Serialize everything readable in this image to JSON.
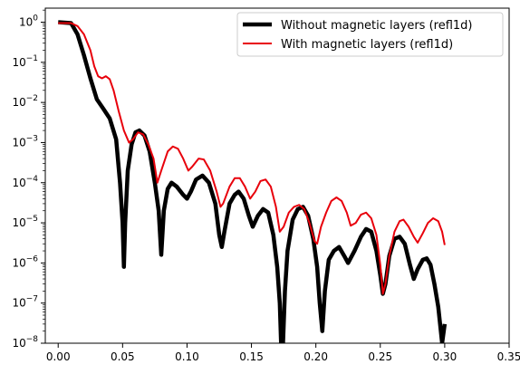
{
  "chart_data": {
    "type": "line",
    "title": "",
    "xlabel": "",
    "ylabel": "",
    "xlim": [
      -0.01,
      0.35
    ],
    "ylim_log10": [
      -8,
      0.35
    ],
    "yscale": "log",
    "grid": false,
    "legend_position": "top-right",
    "x_ticks": [
      {
        "value": 0.0,
        "label": "0.00"
      },
      {
        "value": 0.05,
        "label": "0.05"
      },
      {
        "value": 0.1,
        "label": "0.10"
      },
      {
        "value": 0.15,
        "label": "0.15"
      },
      {
        "value": 0.2,
        "label": "0.20"
      },
      {
        "value": 0.25,
        "label": "0.25"
      },
      {
        "value": 0.3,
        "label": "0.30"
      },
      {
        "value": 0.35,
        "label": "0.35"
      }
    ],
    "y_ticks": [
      {
        "exp": 0,
        "base": "10",
        "sup": "0"
      },
      {
        "exp": -1,
        "base": "10",
        "sup": "−1"
      },
      {
        "exp": -2,
        "base": "10",
        "sup": "−2"
      },
      {
        "exp": -3,
        "base": "10",
        "sup": "−3"
      },
      {
        "exp": -4,
        "base": "10",
        "sup": "−4"
      },
      {
        "exp": -5,
        "base": "10",
        "sup": "−5"
      },
      {
        "exp": -6,
        "base": "10",
        "sup": "−6"
      },
      {
        "exp": -7,
        "base": "10",
        "sup": "−7"
      },
      {
        "exp": -8,
        "base": "10",
        "sup": "−8"
      }
    ],
    "series": [
      {
        "name": "Without magnetic layers (refl1d)",
        "color": "#000000",
        "points": [
          [
            0.0,
            1.0
          ],
          [
            0.01,
            0.95
          ],
          [
            0.015,
            0.5
          ],
          [
            0.02,
            0.15
          ],
          [
            0.025,
            0.04
          ],
          [
            0.03,
            0.012
          ],
          [
            0.035,
            0.007
          ],
          [
            0.04,
            0.004
          ],
          [
            0.045,
            0.0012
          ],
          [
            0.048,
            0.0001
          ],
          [
            0.05,
            1e-05
          ],
          [
            0.051,
            8e-07
          ],
          [
            0.052,
            1e-05
          ],
          [
            0.054,
            0.0002
          ],
          [
            0.057,
            0.0009
          ],
          [
            0.06,
            0.0018
          ],
          [
            0.063,
            0.002
          ],
          [
            0.067,
            0.0015
          ],
          [
            0.071,
            0.0006
          ],
          [
            0.075,
            0.0001
          ],
          [
            0.078,
            2e-05
          ],
          [
            0.08,
            1.6e-06
          ],
          [
            0.082,
            2e-05
          ],
          [
            0.085,
            7e-05
          ],
          [
            0.088,
            0.0001
          ],
          [
            0.092,
            8e-05
          ],
          [
            0.097,
            5e-05
          ],
          [
            0.1,
            4e-05
          ],
          [
            0.103,
            6e-05
          ],
          [
            0.107,
            0.00012
          ],
          [
            0.112,
            0.00015
          ],
          [
            0.117,
            0.0001
          ],
          [
            0.122,
            3e-05
          ],
          [
            0.125,
            5e-06
          ],
          [
            0.127,
            2.5e-06
          ],
          [
            0.129,
            6e-06
          ],
          [
            0.133,
            3e-05
          ],
          [
            0.137,
            5e-05
          ],
          [
            0.14,
            6e-05
          ],
          [
            0.144,
            4e-05
          ],
          [
            0.148,
            1.5e-05
          ],
          [
            0.151,
            8e-06
          ],
          [
            0.155,
            1.5e-05
          ],
          [
            0.159,
            2.2e-05
          ],
          [
            0.163,
            1.8e-05
          ],
          [
            0.167,
            5e-06
          ],
          [
            0.17,
            8e-07
          ],
          [
            0.172,
            1e-07
          ],
          [
            0.173,
            1e-08
          ],
          [
            0.1745,
            1e-08
          ],
          [
            0.176,
            2e-07
          ],
          [
            0.178,
            2e-06
          ],
          [
            0.182,
            1.2e-05
          ],
          [
            0.186,
            2.2e-05
          ],
          [
            0.19,
            2.5e-05
          ],
          [
            0.194,
            1.5e-05
          ],
          [
            0.198,
            4e-06
          ],
          [
            0.201,
            8e-07
          ],
          [
            0.203,
            1e-07
          ],
          [
            0.205,
            2e-08
          ],
          [
            0.207,
            2e-07
          ],
          [
            0.21,
            1.2e-06
          ],
          [
            0.214,
            2e-06
          ],
          [
            0.218,
            2.5e-06
          ],
          [
            0.222,
            1.5e-06
          ],
          [
            0.225,
            1e-06
          ],
          [
            0.23,
            2e-06
          ],
          [
            0.235,
            4.5e-06
          ],
          [
            0.239,
            7e-06
          ],
          [
            0.243,
            6e-06
          ],
          [
            0.247,
            2e-06
          ],
          [
            0.25,
            5e-07
          ],
          [
            0.252,
            1.7e-07
          ],
          [
            0.254,
            3e-07
          ],
          [
            0.257,
            1.5e-06
          ],
          [
            0.261,
            4e-06
          ],
          [
            0.265,
            4.5e-06
          ],
          [
            0.269,
            3e-06
          ],
          [
            0.273,
            9e-07
          ],
          [
            0.276,
            4e-07
          ],
          [
            0.279,
            7e-07
          ],
          [
            0.283,
            1.2e-06
          ],
          [
            0.286,
            1.3e-06
          ],
          [
            0.289,
            9e-07
          ],
          [
            0.292,
            3e-07
          ],
          [
            0.295,
            8e-08
          ],
          [
            0.297,
            2e-08
          ],
          [
            0.298,
            1e-08
          ],
          [
            0.3,
            3e-08
          ]
        ]
      },
      {
        "name": "With magnetic layers (refl1d)",
        "color": "#e8000b",
        "points": [
          [
            0.0,
            0.95
          ],
          [
            0.01,
            0.95
          ],
          [
            0.015,
            0.8
          ],
          [
            0.02,
            0.5
          ],
          [
            0.025,
            0.2
          ],
          [
            0.028,
            0.08
          ],
          [
            0.031,
            0.045
          ],
          [
            0.034,
            0.04
          ],
          [
            0.037,
            0.045
          ],
          [
            0.04,
            0.038
          ],
          [
            0.043,
            0.02
          ],
          [
            0.047,
            0.006
          ],
          [
            0.051,
            0.002
          ],
          [
            0.055,
            0.001
          ],
          [
            0.058,
            0.0012
          ],
          [
            0.062,
            0.0018
          ],
          [
            0.066,
            0.0016
          ],
          [
            0.07,
            0.0009
          ],
          [
            0.074,
            0.0004
          ],
          [
            0.077,
            0.0001
          ],
          [
            0.08,
            0.0002
          ],
          [
            0.085,
            0.0006
          ],
          [
            0.089,
            0.0008
          ],
          [
            0.093,
            0.0007
          ],
          [
            0.097,
            0.0004
          ],
          [
            0.101,
            0.0002
          ],
          [
            0.104,
            0.00025
          ],
          [
            0.109,
            0.0004
          ],
          [
            0.113,
            0.00038
          ],
          [
            0.118,
            0.0002
          ],
          [
            0.123,
            6e-05
          ],
          [
            0.126,
            2.5e-05
          ],
          [
            0.128,
            3e-05
          ],
          [
            0.133,
            8e-05
          ],
          [
            0.137,
            0.00013
          ],
          [
            0.141,
            0.00013
          ],
          [
            0.145,
            8e-05
          ],
          [
            0.149,
            4e-05
          ],
          [
            0.153,
            6e-05
          ],
          [
            0.157,
            0.00011
          ],
          [
            0.161,
            0.00012
          ],
          [
            0.165,
            8e-05
          ],
          [
            0.169,
            2.5e-05
          ],
          [
            0.172,
            6e-06
          ],
          [
            0.175,
            8e-06
          ],
          [
            0.179,
            1.8e-05
          ],
          [
            0.183,
            2.5e-05
          ],
          [
            0.187,
            2.8e-05
          ],
          [
            0.191,
            2.2e-05
          ],
          [
            0.195,
            1e-05
          ],
          [
            0.199,
            3.5e-06
          ],
          [
            0.201,
            3e-06
          ],
          [
            0.204,
            8e-06
          ],
          [
            0.208,
            1.8e-05
          ],
          [
            0.212,
            3.5e-05
          ],
          [
            0.216,
            4.3e-05
          ],
          [
            0.22,
            3.5e-05
          ],
          [
            0.224,
            1.8e-05
          ],
          [
            0.227,
            8.5e-06
          ],
          [
            0.231,
            1e-05
          ],
          [
            0.235,
            1.6e-05
          ],
          [
            0.239,
            1.8e-05
          ],
          [
            0.243,
            1.3e-05
          ],
          [
            0.247,
            5e-06
          ],
          [
            0.25,
            9e-07
          ],
          [
            0.252,
            1.7e-07
          ],
          [
            0.254,
            3e-07
          ],
          [
            0.257,
            1.5e-06
          ],
          [
            0.261,
            6e-06
          ],
          [
            0.265,
            1.1e-05
          ],
          [
            0.268,
            1.2e-05
          ],
          [
            0.272,
            8e-06
          ],
          [
            0.276,
            4.5e-06
          ],
          [
            0.279,
            3.2e-06
          ],
          [
            0.283,
            5.5e-06
          ],
          [
            0.287,
            1e-05
          ],
          [
            0.291,
            1.3e-05
          ],
          [
            0.295,
            1.1e-05
          ],
          [
            0.298,
            6e-06
          ],
          [
            0.3,
            2.8e-06
          ]
        ]
      }
    ]
  }
}
